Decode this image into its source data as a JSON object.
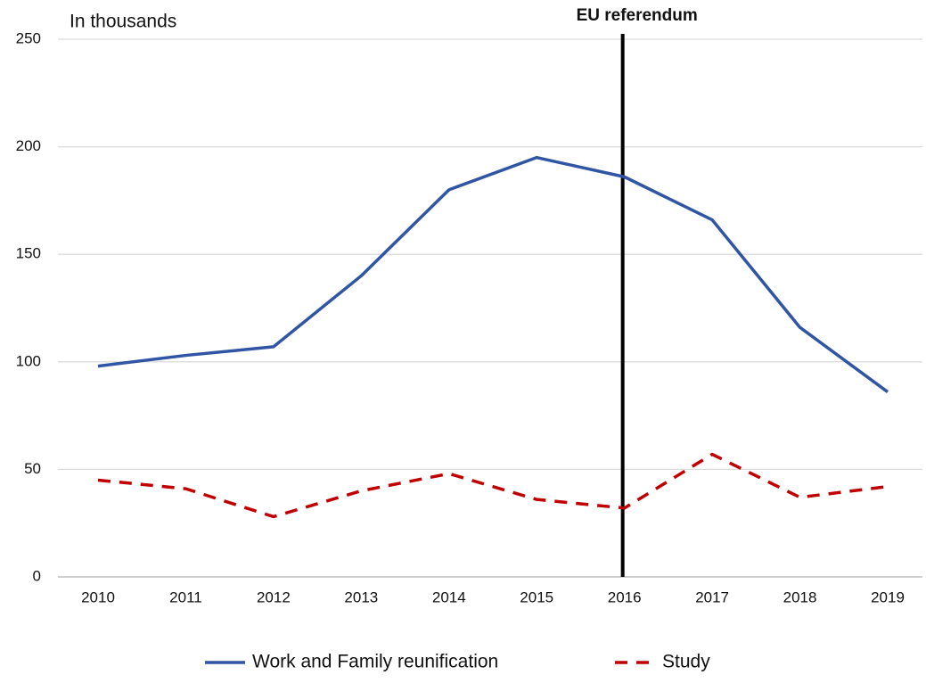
{
  "chart_data": {
    "type": "line",
    "y_label": "In thousands",
    "categories": [
      "2010",
      "2011",
      "2012",
      "2013",
      "2014",
      "2015",
      "2016",
      "2017",
      "2018",
      "2019"
    ],
    "series": [
      {
        "name": "Work and Family reunification",
        "color": "#2f55a4",
        "dash": "solid",
        "values": [
          98,
          103,
          107,
          140,
          180,
          195,
          186,
          166,
          116,
          86
        ]
      },
      {
        "name": "Study",
        "color": "#c00000",
        "dash": "dashed",
        "values": [
          45,
          41,
          28,
          40,
          48,
          36,
          32,
          57,
          37,
          42
        ]
      }
    ],
    "ylim": [
      0,
      250
    ],
    "yticks": [
      0,
      50,
      100,
      150,
      200,
      250
    ],
    "grid": true,
    "legend": "bottom",
    "annotations": [
      {
        "text": "EU referendum",
        "x": "2016"
      }
    ]
  }
}
